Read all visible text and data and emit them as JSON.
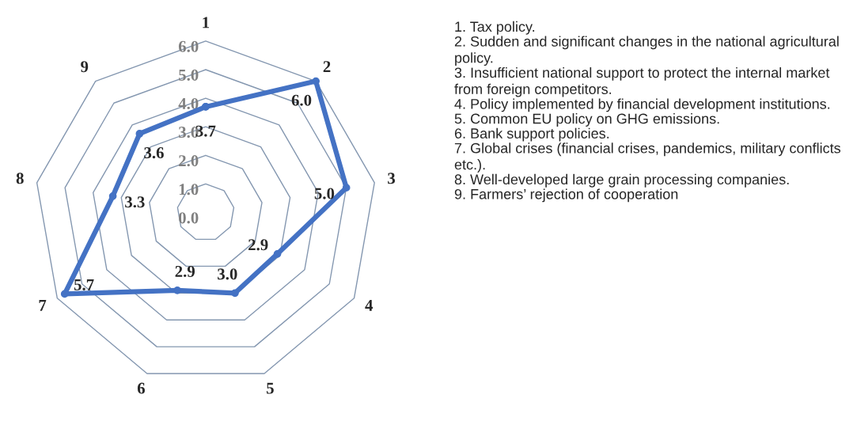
{
  "chart_data": {
    "type": "radar",
    "categories": [
      "1",
      "2",
      "3",
      "4",
      "5",
      "6",
      "7",
      "8",
      "9"
    ],
    "series": [
      {
        "color": "#4472c4",
        "values": [
          3.7,
          6.0,
          5.0,
          2.9,
          3.0,
          2.9,
          5.7,
          3.3,
          3.6
        ],
        "value_labels": [
          "3.7",
          "6.0",
          "5.0",
          "2.9",
          "3.0",
          "2.9",
          "5.7",
          "3.3",
          "3.6"
        ]
      }
    ],
    "ylim": [
      0,
      6
    ],
    "yticks": [
      {
        "value": 0,
        "label": "0.0"
      },
      {
        "value": 1,
        "label": "1.0"
      },
      {
        "value": 2,
        "label": "2.0"
      },
      {
        "value": 3,
        "label": "3.0"
      },
      {
        "value": 4,
        "label": "4.0"
      },
      {
        "value": 5,
        "label": "5.0"
      },
      {
        "value": 6,
        "label": "6.0"
      }
    ],
    "grid": true,
    "data_labels": true,
    "marker": "circle",
    "annotations": [
      "1. Tax policy.",
      "2. Sudden and significant changes in the national agricultural policy.",
      "3. Insufficient national support to protect the internal market from foreign competitors.",
      "4. Policy implemented by financial development institutions.",
      "5. Common EU policy on GHG emissions.",
      "6. Bank support policies.",
      "7. Global crises (financial crises, pandemics, military conflicts etc.).",
      "8. Well-developed large grain processing companies.",
      "9. Farmers’ rejection of cooperation"
    ]
  }
}
